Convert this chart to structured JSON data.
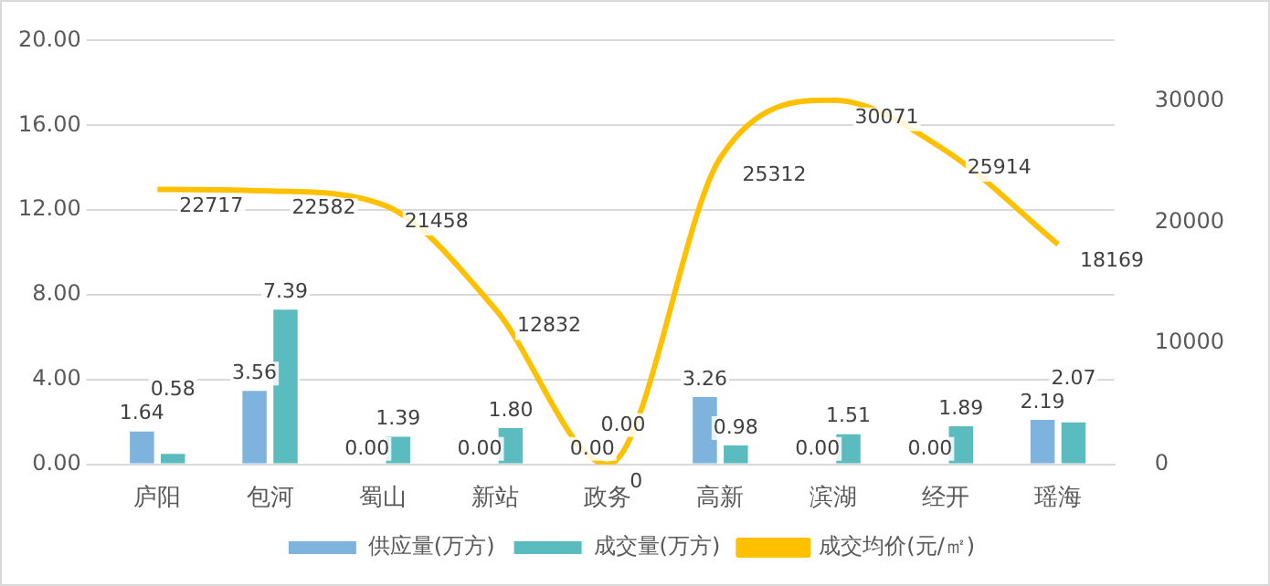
{
  "chart_data": {
    "type": "bar",
    "categories": [
      "庐阳",
      "包河",
      "蜀山",
      "新站",
      "政务",
      "高新",
      "滨湖",
      "经开",
      "瑶海"
    ],
    "series": [
      {
        "name": "供应量(万方)",
        "color": "#7eb3dd",
        "values": [
          1.64,
          3.56,
          0,
          0,
          0,
          3.26,
          0,
          0,
          2.19
        ],
        "value_labels": [
          "1.64",
          "3.56",
          "0.00",
          "0.00",
          "0.00",
          "3.26",
          "0.00",
          "0.00",
          "2.19"
        ]
      },
      {
        "name": "成交量(万方)",
        "color": "#5bbcbf",
        "values": [
          0.58,
          7.39,
          1.39,
          1.8,
          0,
          0.98,
          1.51,
          1.89,
          2.07
        ],
        "value_labels": [
          "0.58",
          "7.39",
          "1.39",
          "1.80",
          "0.00",
          "0.98",
          "1.51",
          "1.89",
          "2.07"
        ]
      },
      {
        "name": "成交均价(元/㎡)",
        "type": "line",
        "axis": "y2",
        "color": "#ffc000",
        "values": [
          22717,
          22582,
          21458,
          12832,
          0,
          25312,
          30071,
          25914,
          18169
        ],
        "value_labels": [
          "22717",
          "22582",
          "21458",
          "12832",
          "0",
          "25312",
          "30071",
          "25914",
          "18169"
        ]
      }
    ],
    "ylim": [
      0,
      20
    ],
    "yticks": [
      {
        "value": 0,
        "label": "0.00"
      },
      {
        "value": 4,
        "label": "4.00"
      },
      {
        "value": 8,
        "label": "8.00"
      },
      {
        "value": 12,
        "label": "12.00"
      },
      {
        "value": 16,
        "label": "16.00"
      },
      {
        "value": 20,
        "label": "20.00"
      }
    ],
    "y2lim": [
      0,
      35000
    ],
    "y2ticks": [
      0,
      10000,
      20000,
      30000
    ],
    "data_labels": true,
    "grid": "y",
    "legend": "bottom"
  }
}
